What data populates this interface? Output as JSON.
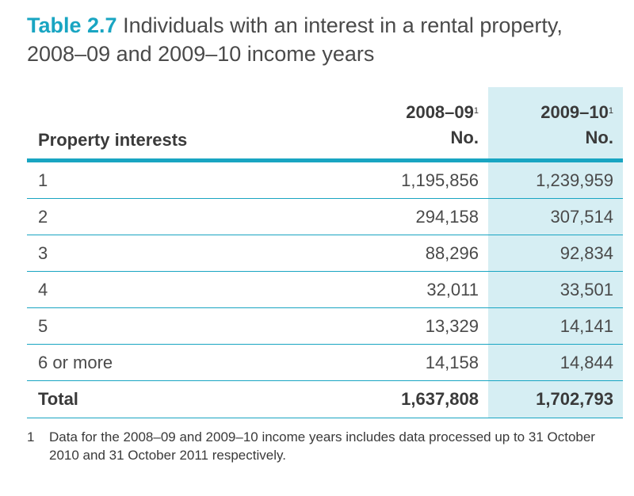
{
  "title": {
    "number": "Table 2.7",
    "text": "Individuals with an interest in a rental property, 2008–09 and 2009–10 income years"
  },
  "colors": {
    "accent": "#19a5c2",
    "shade": "#d6eef3",
    "text": "#3a3a3a"
  },
  "table": {
    "header": {
      "label": "Property interests",
      "col1_year": "2008–09",
      "col1_sup": "1",
      "col1_unit": "No.",
      "col2_year": "2009–10",
      "col2_sup": "1",
      "col2_unit": "No."
    },
    "rows": [
      {
        "label": "1",
        "v2008": "1,195,856",
        "v2009": "1,239,959"
      },
      {
        "label": "2",
        "v2008": "294,158",
        "v2009": "307,514"
      },
      {
        "label": "3",
        "v2008": "88,296",
        "v2009": "92,834"
      },
      {
        "label": "4",
        "v2008": "32,011",
        "v2009": "33,501"
      },
      {
        "label": "5",
        "v2008": "13,329",
        "v2009": "14,141"
      },
      {
        "label": "6 or more",
        "v2008": "14,158",
        "v2009": "14,844"
      }
    ],
    "total": {
      "label": "Total",
      "v2008": "1,637,808",
      "v2009": "1,702,793"
    }
  },
  "footnote": {
    "mark": "1",
    "text": "Data for the 2008–09 and 2009–10 income years includes data processed up to 31 October 2010 and 31 October 2011 respectively."
  }
}
